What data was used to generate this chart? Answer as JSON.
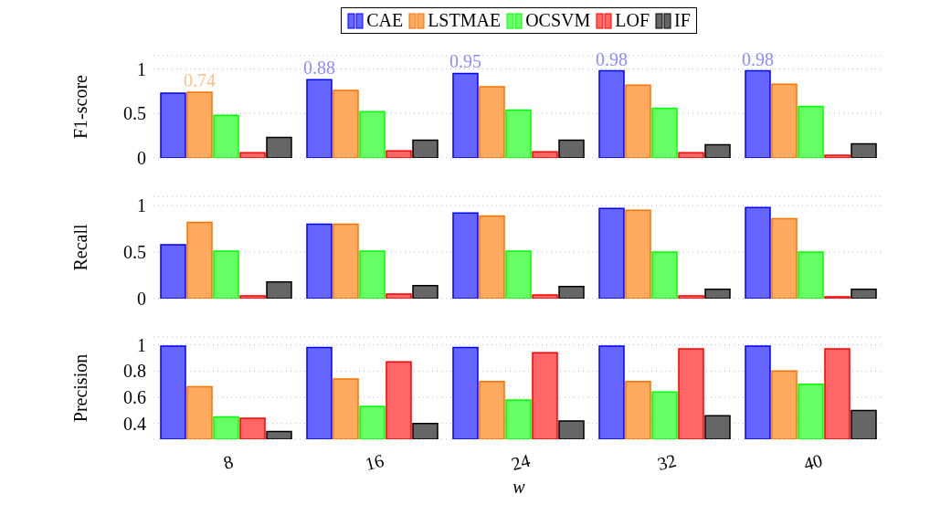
{
  "chart_data": [
    {
      "type": "bar",
      "ylabel": "F1-score",
      "categories": [
        "8",
        "16",
        "24",
        "32",
        "40"
      ],
      "ylim": [
        0,
        1.15
      ],
      "yticks": [
        0,
        0.5,
        1
      ],
      "grid": "y",
      "legend": "top",
      "tick_labels": "y",
      "series": [
        {
          "name": "CAE",
          "color": "#6666ff",
          "values": [
            0.73,
            0.88,
            0.95,
            0.98,
            0.98
          ],
          "value_labels": [
            null,
            "0.88",
            "0.95",
            "0.98",
            "0.98"
          ]
        },
        {
          "name": "LSTMAE",
          "color": "#ffaa5f",
          "values": [
            0.74,
            0.76,
            0.8,
            0.82,
            0.83
          ],
          "value_labels": [
            "0.74",
            null,
            null,
            null,
            null
          ]
        },
        {
          "name": "OCSVM",
          "color": "#66ff66",
          "values": [
            0.48,
            0.52,
            0.54,
            0.56,
            0.58
          ]
        },
        {
          "name": "LOF",
          "color": "#ff6666",
          "values": [
            0.06,
            0.08,
            0.07,
            0.06,
            0.03
          ]
        },
        {
          "name": "IF",
          "color": "#666666",
          "values": [
            0.23,
            0.2,
            0.2,
            0.15,
            0.16
          ]
        }
      ]
    },
    {
      "type": "bar",
      "ylabel": "Recall",
      "categories": [
        "8",
        "16",
        "24",
        "32",
        "40"
      ],
      "ylim": [
        0,
        1.1
      ],
      "yticks": [
        0,
        0.5,
        1
      ],
      "grid": "y",
      "tick_labels": "y",
      "series": [
        {
          "color": "#6666ff",
          "values": [
            0.58,
            0.8,
            0.92,
            0.97,
            0.98
          ]
        },
        {
          "color": "#ffaa5f",
          "values": [
            0.82,
            0.8,
            0.89,
            0.95,
            0.86
          ]
        },
        {
          "color": "#66ff66",
          "values": [
            0.51,
            0.51,
            0.51,
            0.5,
            0.5
          ]
        },
        {
          "color": "#ff6666",
          "values": [
            0.03,
            0.05,
            0.04,
            0.03,
            0.02
          ]
        },
        {
          "color": "#666666",
          "values": [
            0.18,
            0.14,
            0.13,
            0.1,
            0.1
          ]
        }
      ]
    },
    {
      "type": "bar",
      "ylabel": "Precision",
      "xlabel": "w",
      "categories": [
        "8",
        "16",
        "24",
        "32",
        "40"
      ],
      "ylim": [
        0.28,
        1.06
      ],
      "yticks": [
        0.4,
        0.6,
        0.8,
        1
      ],
      "grid": "y",
      "series": [
        {
          "color": "#6666ff",
          "values": [
            0.99,
            0.98,
            0.98,
            0.99,
            0.99
          ]
        },
        {
          "color": "#ffaa5f",
          "values": [
            0.68,
            0.74,
            0.72,
            0.72,
            0.8
          ]
        },
        {
          "color": "#66ff66",
          "values": [
            0.45,
            0.53,
            0.58,
            0.64,
            0.7
          ]
        },
        {
          "color": "#ff6666",
          "values": [
            0.44,
            0.87,
            0.94,
            0.97,
            0.97
          ]
        },
        {
          "color": "#666666",
          "values": [
            0.34,
            0.4,
            0.42,
            0.46,
            0.5
          ]
        }
      ]
    }
  ]
}
